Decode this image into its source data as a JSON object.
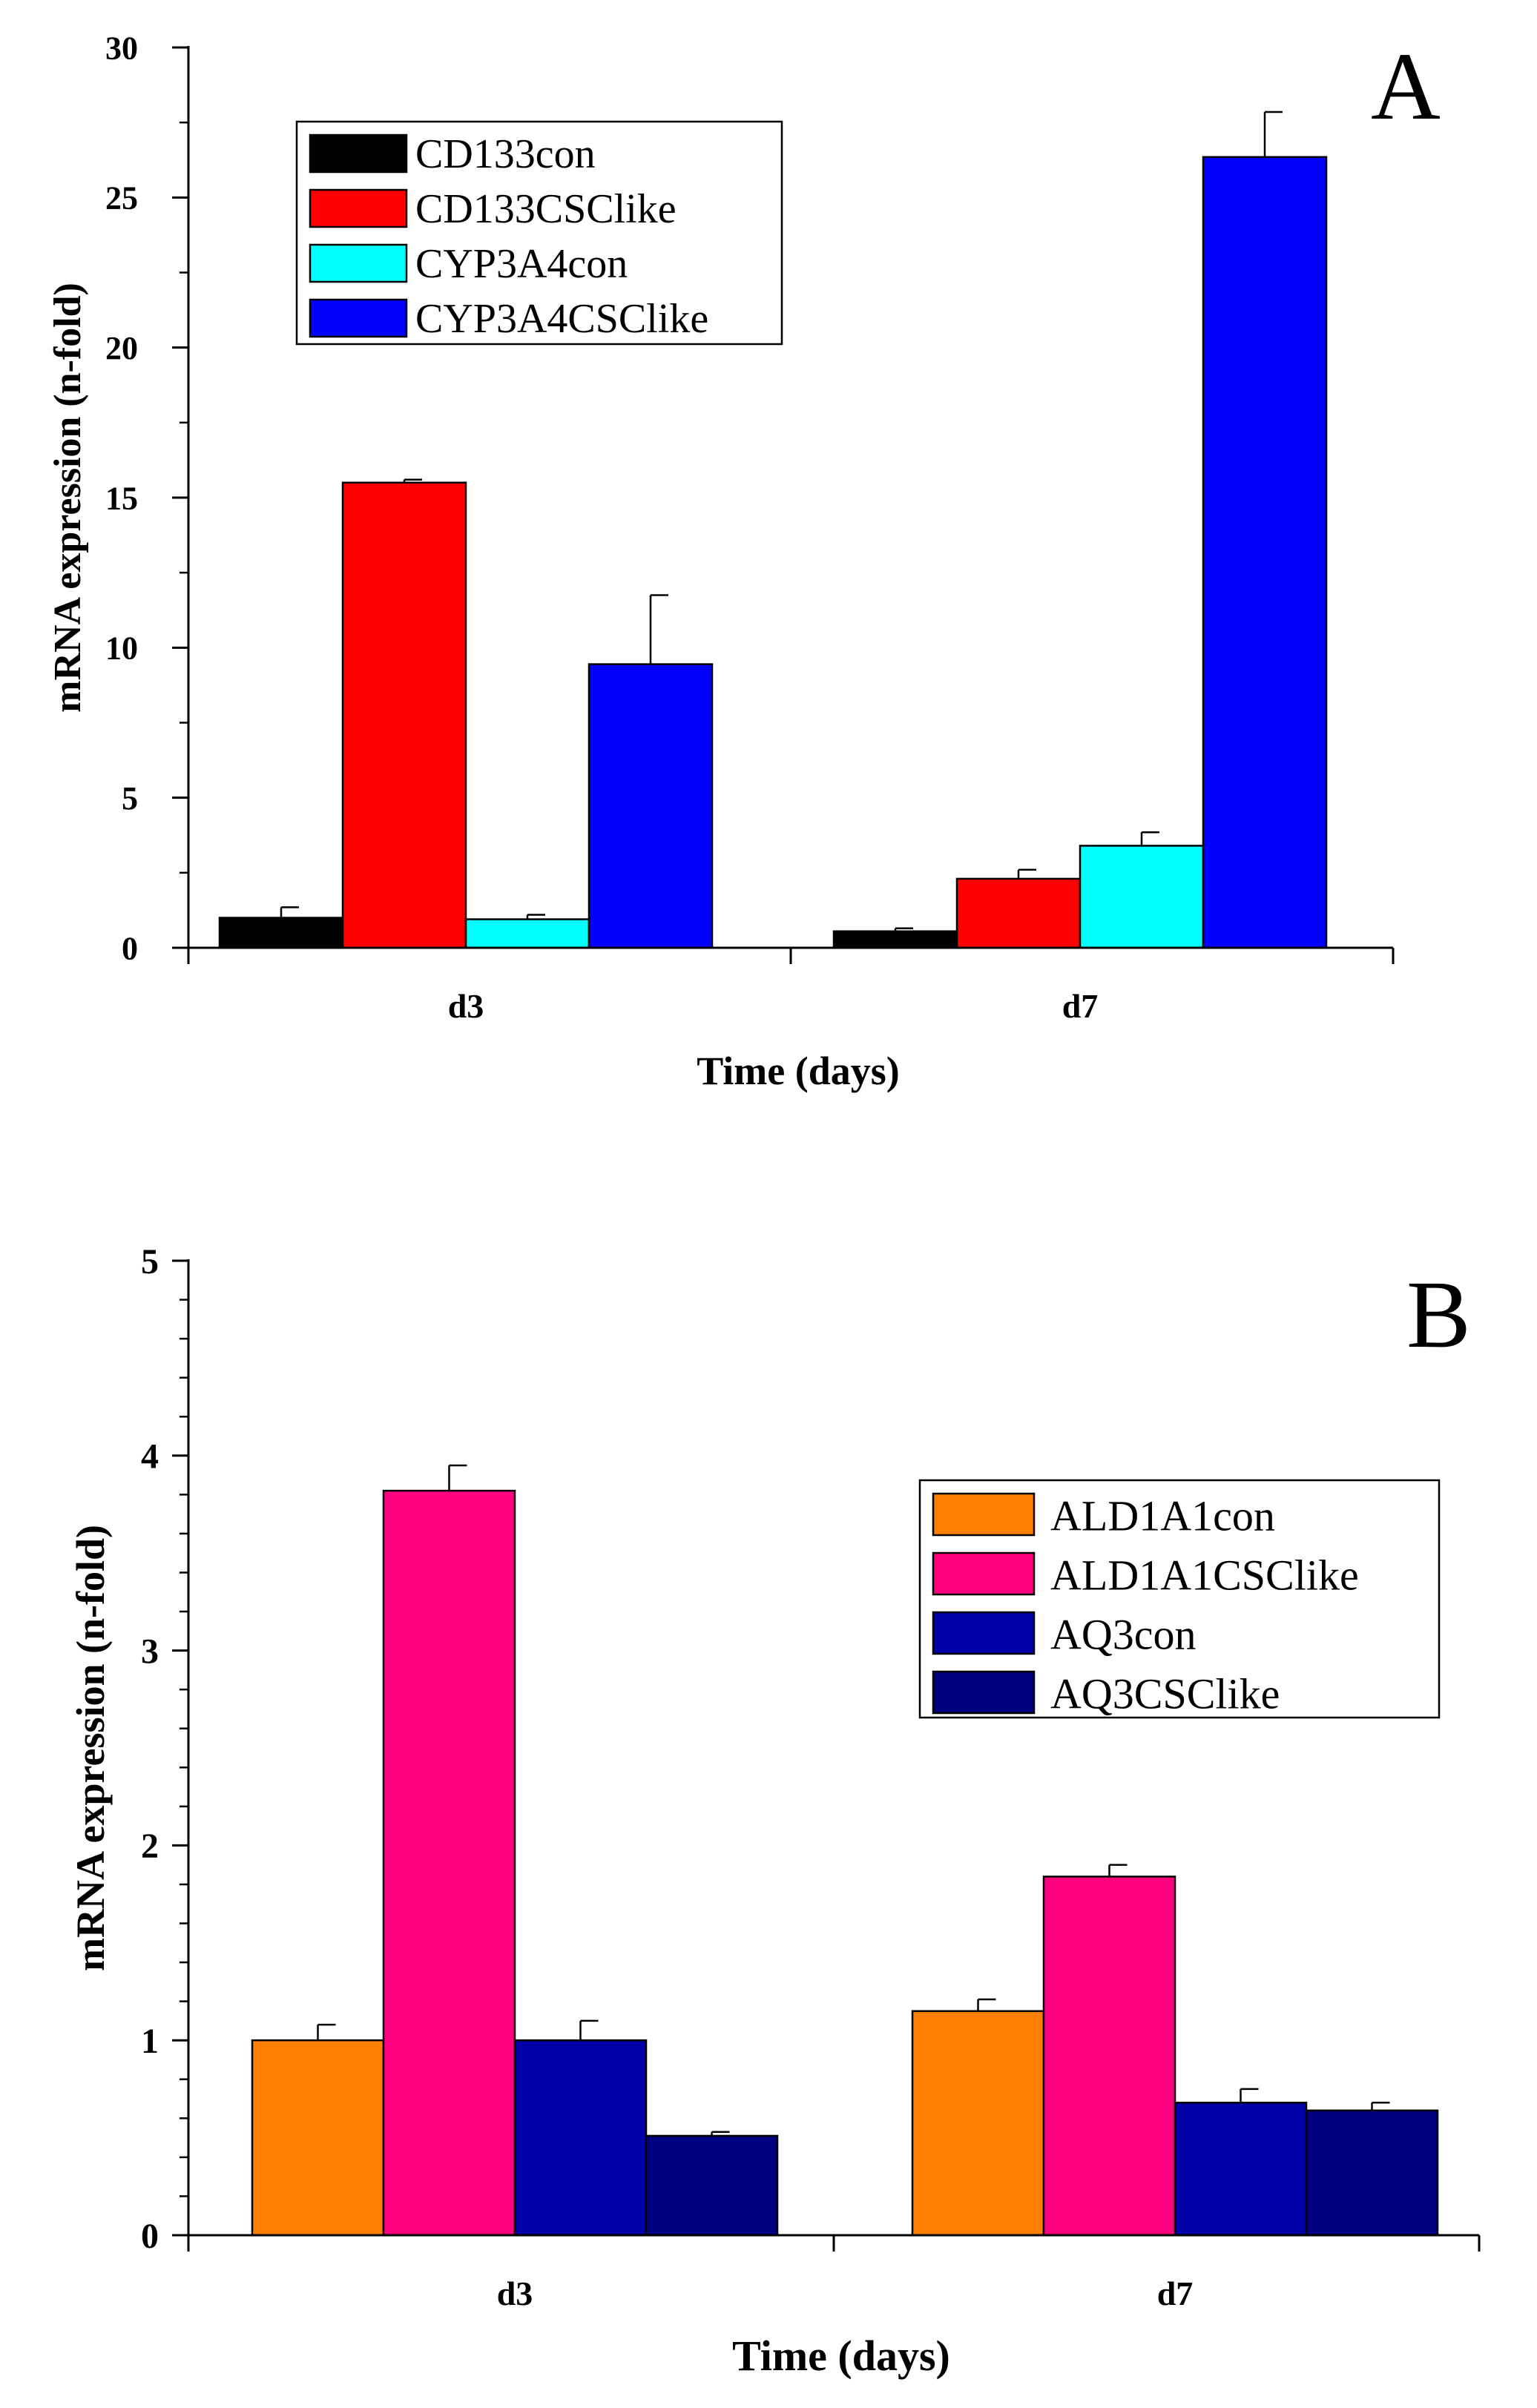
{
  "chart_data": [
    {
      "panel": "A",
      "type": "bar",
      "xlabel": "Time (days)",
      "ylabel": "mRNA expression (n-fold)",
      "categories": [
        "d3",
        "d7"
      ],
      "ylim": [
        0,
        30
      ],
      "yticks": [
        "0",
        "5",
        "10",
        "15",
        "20",
        "25",
        "30"
      ],
      "legend_position": "top-left",
      "series": [
        {
          "name": "CD133con",
          "color": "#000000",
          "values": [
            1.0,
            0.55
          ],
          "errors": [
            0.35,
            0.1
          ]
        },
        {
          "name": "CD133CSClike",
          "color": "#ff0000",
          "values": [
            15.5,
            2.3
          ],
          "errors": [
            0.1,
            0.3
          ]
        },
        {
          "name": "CYP3A4con",
          "color": "#00ffff",
          "values": [
            0.95,
            3.4
          ],
          "errors": [
            0.15,
            0.45
          ]
        },
        {
          "name": "CYP3A4CSClike",
          "color": "#0000ff",
          "values": [
            9.45,
            26.35
          ],
          "errors": [
            2.3,
            1.5
          ]
        }
      ]
    },
    {
      "panel": "B",
      "type": "bar",
      "xlabel": "Time (days)",
      "ylabel": "mRNA expression (n-fold)",
      "categories": [
        "d3",
        "d7"
      ],
      "ylim": [
        0,
        5
      ],
      "yticks": [
        "0",
        "1",
        "2",
        "3",
        "4",
        "5"
      ],
      "legend_position": "top-right",
      "series": [
        {
          "name": "ALD1A1con",
          "color": "#ff8000",
          "values": [
            1.0,
            1.15
          ],
          "errors": [
            0.08,
            0.06
          ]
        },
        {
          "name": "ALD1A1CSClike",
          "color": "#ff0080",
          "values": [
            3.82,
            1.84
          ],
          "errors": [
            0.13,
            0.06
          ]
        },
        {
          "name": "AQ3con",
          "color": "#0000a8",
          "values": [
            1.0,
            0.68
          ],
          "errors": [
            0.1,
            0.07
          ]
        },
        {
          "name": "AQ3CSClike",
          "color": "#000080",
          "values": [
            0.51,
            0.64
          ],
          "errors": [
            0.02,
            0.04
          ]
        }
      ]
    }
  ]
}
